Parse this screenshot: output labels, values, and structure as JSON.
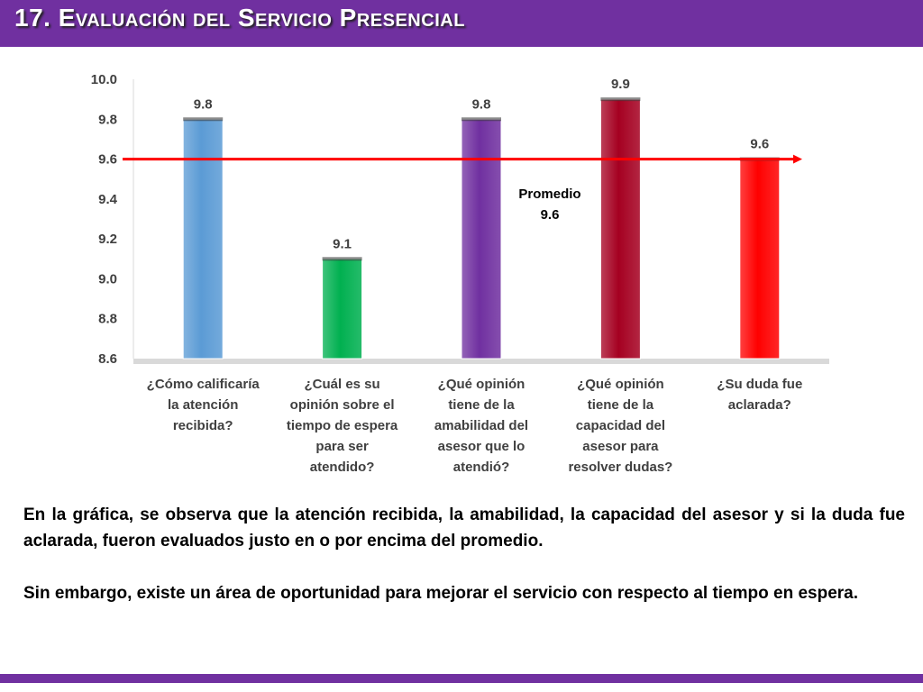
{
  "slide": {
    "title": "17. Evaluación del Servicio Presencial",
    "colors": {
      "title_bar": "#7030a0",
      "title_text": "#ffffff",
      "average_line": "#ff0000"
    }
  },
  "chart_data": {
    "type": "bar",
    "categories": [
      [
        "¿Cómo calificaría",
        "la atención",
        "recibida?"
      ],
      [
        "¿Cuál es su",
        "opinión sobre el",
        "tiempo de espera",
        "para ser",
        "atendido?"
      ],
      [
        "¿Qué opinión",
        "tiene de la",
        "amabilidad del",
        "asesor que lo",
        "atendió?"
      ],
      [
        "¿Qué opinión",
        "tiene de la",
        "capacidad del",
        "asesor para",
        "resolver dudas?"
      ],
      [
        "¿Su duda fue",
        "aclarada?"
      ]
    ],
    "values": [
      9.8,
      9.1,
      9.8,
      9.9,
      9.6
    ],
    "value_labels": [
      "9.8",
      "9.1",
      "9.8",
      "9.9",
      "9.6"
    ],
    "bar_colors": [
      "#5b9bd5",
      "#00b050",
      "#7030a0",
      "#a50021",
      "#ff0000"
    ],
    "ylim": [
      8.6,
      10.0
    ],
    "yticks": [
      "8.6",
      "8.8",
      "9.0",
      "9.2",
      "9.4",
      "9.6",
      "9.8",
      "10.0"
    ],
    "grid": false,
    "average": {
      "value": 9.6,
      "label_lines": [
        "Promedio",
        "9.6"
      ],
      "color": "#ff0000"
    }
  },
  "conclusions": {
    "paragraph1": "En la gráfica, se observa que  la atención recibida, la amabilidad, la capacidad del asesor y si la duda fue aclarada, fueron evaluados justo en o por encima del promedio.",
    "paragraph2": "Sin embargo, existe un área de oportunidad para mejorar el servicio con respecto al tiempo en espera."
  }
}
